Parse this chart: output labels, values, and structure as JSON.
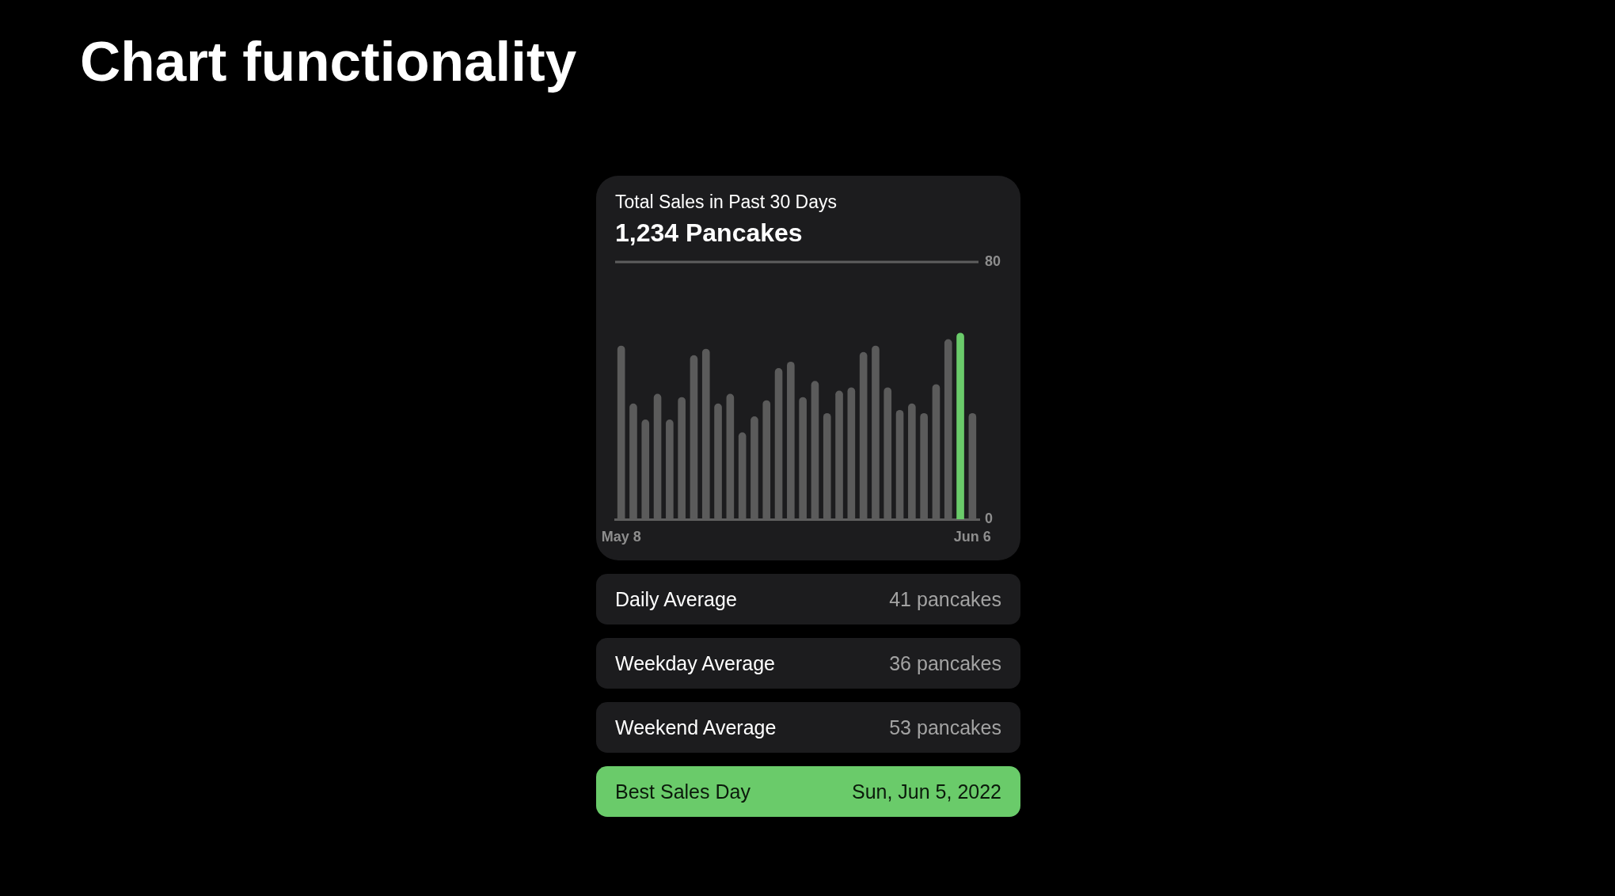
{
  "chart_data": {
    "type": "bar",
    "title": "Total Sales in Past 30 Days",
    "subtitle": "1,234 Pancakes",
    "categories": [
      "May 8",
      null,
      null,
      null,
      null,
      null,
      null,
      null,
      null,
      null,
      null,
      null,
      null,
      null,
      null,
      null,
      null,
      null,
      null,
      null,
      null,
      null,
      null,
      null,
      null,
      null,
      null,
      null,
      null,
      "Jun 6"
    ],
    "values": [
      54,
      36,
      31,
      39,
      31,
      38,
      51,
      53,
      36,
      39,
      27,
      32,
      37,
      47,
      49,
      38,
      43,
      33,
      40,
      41,
      52,
      54,
      41,
      34,
      36,
      33,
      42,
      56,
      58,
      33
    ],
    "colors": [
      "#5b5b5b",
      "#5b5b5b",
      "#5b5b5b",
      "#5b5b5b",
      "#5b5b5b",
      "#5b5b5b",
      "#5b5b5b",
      "#5b5b5b",
      "#5b5b5b",
      "#5b5b5b",
      "#5b5b5b",
      "#5b5b5b",
      "#5b5b5b",
      "#5b5b5b",
      "#5b5b5b",
      "#5b5b5b",
      "#5b5b5b",
      "#5b5b5b",
      "#5b5b5b",
      "#5b5b5b",
      "#5b5b5b",
      "#5b5b5b",
      "#5b5b5b",
      "#5b5b5b",
      "#5b5b5b",
      "#5b5b5b",
      "#5b5b5b",
      "#5b5b5b",
      "#6acb6a",
      "#5b5b5b"
    ],
    "ylim": [
      0,
      80
    ],
    "yticks": [
      0,
      80
    ],
    "annotations": [
      "Chart functionality",
      "Daily Average",
      "41 pancakes",
      "Weekday Average",
      "36 pancakes",
      "Weekend Average",
      "53 pancakes",
      "Best Sales Day",
      "Sun, Jun 5, 2022"
    ]
  }
}
